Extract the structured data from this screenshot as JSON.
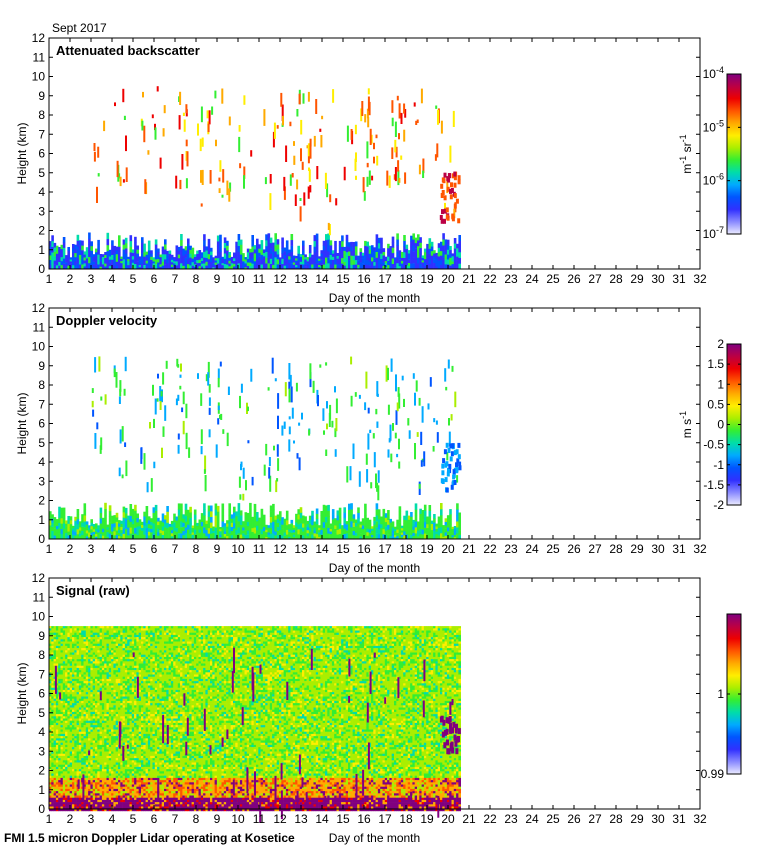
{
  "header": {
    "month_label": "Sept 2017"
  },
  "footer": {
    "caption": "FMI 1.5 micron Doppler Lidar operating at Kosetice"
  },
  "colors": {
    "rainbow": [
      "#ececff",
      "#8a8aff",
      "#3030ff",
      "#0055ff",
      "#00aaff",
      "#00ddaa",
      "#33ee33",
      "#aaee00",
      "#ffee00",
      "#ffaa00",
      "#ff5500",
      "#ee0000",
      "#bb0044",
      "#800080"
    ],
    "axis": "#000000",
    "background": "#ffffff"
  },
  "chart_data": [
    {
      "type": "heatmap",
      "title": "Attenuated backscatter",
      "xlabel": "Day of the month",
      "ylabel": "Height (km)",
      "xlim": [
        1,
        32
      ],
      "ylim": [
        0,
        12
      ],
      "x_ticks": [
        "1",
        "2",
        "3",
        "4",
        "5",
        "6",
        "7",
        "8",
        "9",
        "10",
        "11",
        "12",
        "13",
        "14",
        "15",
        "16",
        "17",
        "18",
        "19",
        "20",
        "21",
        "22",
        "23",
        "24",
        "25",
        "26",
        "27",
        "28",
        "29",
        "30",
        "31",
        "32"
      ],
      "y_ticks": [
        "0",
        "1",
        "2",
        "3",
        "4",
        "5",
        "6",
        "7",
        "8",
        "9",
        "10",
        "11",
        "12"
      ],
      "data_extent_days": [
        1,
        20.5
      ],
      "colorbar": {
        "scale": "log",
        "range": [
          1e-07,
          0.0001
        ],
        "unit_main": "m",
        "unit_exp1": "-1",
        "unit_mid": " sr",
        "unit_exp2": "-1",
        "ticks": [
          {
            "base": "10",
            "exp": "-4",
            "value": 0.0001
          },
          {
            "base": "10",
            "exp": "-5",
            "value": 1e-05
          },
          {
            "base": "10",
            "exp": "-6",
            "value": 1e-06
          },
          {
            "base": "10",
            "exp": "-7",
            "value": 1e-07
          }
        ]
      },
      "x_title_label": "Day of the month"
    },
    {
      "type": "heatmap",
      "title": "Doppler velocity",
      "xlabel": "Day of the month",
      "ylabel": "Height (km)",
      "xlim": [
        1,
        32
      ],
      "ylim": [
        0,
        12
      ],
      "x_ticks": [
        "1",
        "2",
        "3",
        "4",
        "5",
        "6",
        "7",
        "8",
        "9",
        "10",
        "11",
        "12",
        "13",
        "14",
        "15",
        "16",
        "17",
        "18",
        "19",
        "20",
        "21",
        "22",
        "23",
        "24",
        "25",
        "26",
        "27",
        "28",
        "29",
        "30",
        "31",
        "32"
      ],
      "y_ticks": [
        "0",
        "1",
        "2",
        "3",
        "4",
        "5",
        "6",
        "7",
        "8",
        "9",
        "10",
        "11",
        "12"
      ],
      "data_extent_days": [
        1,
        20.5
      ],
      "colorbar": {
        "scale": "linear",
        "range": [
          -2,
          2
        ],
        "unit_main": "m s",
        "unit_exp1": "-1",
        "ticks": [
          {
            "label": "2",
            "value": 2
          },
          {
            "label": "1.5",
            "value": 1.5
          },
          {
            "label": "1",
            "value": 1
          },
          {
            "label": "0.5",
            "value": 0.5
          },
          {
            "label": "0",
            "value": 0
          },
          {
            "label": "-0.5",
            "value": -0.5
          },
          {
            "label": "-1",
            "value": -1
          },
          {
            "label": "-1.5",
            "value": -1.5
          },
          {
            "label": "-2",
            "value": -2
          }
        ]
      },
      "x_title_label": "Day of the month"
    },
    {
      "type": "heatmap",
      "title": "Signal (raw)",
      "xlabel": "Day of the month",
      "ylabel": "Height (km)",
      "xlim": [
        1,
        32
      ],
      "ylim": [
        0,
        12
      ],
      "x_ticks": [
        "1",
        "2",
        "3",
        "4",
        "5",
        "6",
        "7",
        "8",
        "9",
        "10",
        "11",
        "12",
        "13",
        "14",
        "15",
        "16",
        "17",
        "18",
        "19",
        "20",
        "21",
        "22",
        "23",
        "24",
        "25",
        "26",
        "27",
        "28",
        "29",
        "30",
        "31",
        "32"
      ],
      "y_ticks": [
        "0",
        "1",
        "2",
        "3",
        "4",
        "5",
        "6",
        "7",
        "8",
        "9",
        "10",
        "11",
        "12"
      ],
      "data_extent_days": [
        1,
        20.5
      ],
      "data_extent_height_km": [
        0,
        9.5
      ],
      "colorbar": {
        "scale": "linear",
        "range": [
          0.99,
          1.01
        ],
        "ticks": [
          {
            "label": "1",
            "value": 1.0
          },
          {
            "label": "0.99",
            "value": 0.99
          }
        ]
      },
      "x_title_label": "Day of the month"
    }
  ]
}
